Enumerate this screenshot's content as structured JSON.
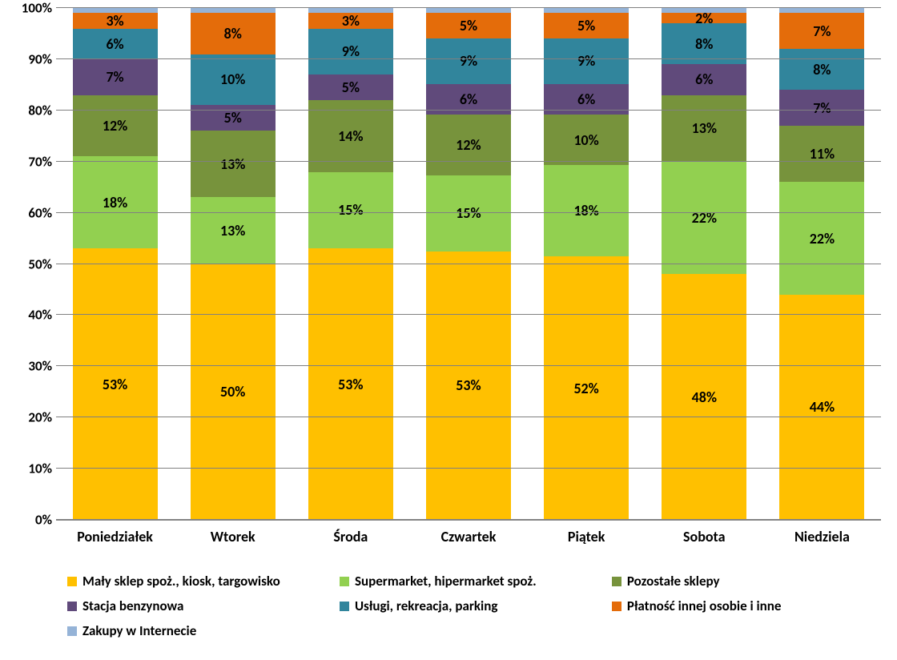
{
  "chart": {
    "type": "stacked-bar-100",
    "background_color": "#ffffff",
    "grid_color": "#808080",
    "label_fontsize": 17,
    "label_fontweight": "bold",
    "label_color": "#000000",
    "data_label_fontsize": 18,
    "bar_width_ratio": 0.72,
    "y_axis": {
      "min": 0,
      "max": 100,
      "tick_step": 10,
      "format": "percent",
      "ticks": [
        "0%",
        "10%",
        "20%",
        "30%",
        "40%",
        "50%",
        "60%",
        "70%",
        "80%",
        "90%",
        "100%"
      ]
    },
    "categories": [
      "Poniedziałek",
      "Wtorek",
      "Środa",
      "Czwartek",
      "Piątek",
      "Sobota",
      "Niedziela"
    ],
    "series": [
      {
        "name": "Mały sklep spoż., kiosk, targowisko",
        "color": "#ffc000",
        "values": [
          53,
          50,
          53,
          53,
          52,
          48,
          44
        ],
        "labels": [
          "53%",
          "50%",
          "53%",
          "53%",
          "52%",
          "48%",
          "44%"
        ],
        "show_label": [
          true,
          true,
          true,
          true,
          true,
          true,
          true
        ]
      },
      {
        "name": "Supermarket, hipermarket spoż.",
        "color": "#92d050",
        "values": [
          18,
          13,
          15,
          15,
          18,
          22,
          22
        ],
        "labels": [
          "18%",
          "13%",
          "15%",
          "15%",
          "18%",
          "22%",
          "22%"
        ],
        "show_label": [
          true,
          true,
          true,
          true,
          true,
          true,
          true
        ]
      },
      {
        "name": "Pozostałe sklepy",
        "color": "#77933c",
        "values": [
          12,
          13,
          14,
          12,
          10,
          13,
          11
        ],
        "labels": [
          "12%",
          "13%",
          "14%",
          "12%",
          "10%",
          "13%",
          "11%"
        ],
        "show_label": [
          true,
          true,
          true,
          true,
          true,
          true,
          true
        ]
      },
      {
        "name": "Stacja benzynowa",
        "color": "#604a7b",
        "values": [
          7,
          5,
          5,
          6,
          6,
          6,
          7
        ],
        "labels": [
          "7%",
          "5%",
          "5%",
          "6%",
          "6%",
          "6%",
          "7%"
        ],
        "show_label": [
          true,
          true,
          true,
          true,
          true,
          true,
          true
        ]
      },
      {
        "name": "Usługi, rekreacja, parking",
        "color": "#31859c",
        "values": [
          6,
          10,
          9,
          9,
          9,
          8,
          8
        ],
        "labels": [
          "6%",
          "10%",
          "9%",
          "9%",
          "9%",
          "8%",
          "8%"
        ],
        "show_label": [
          true,
          true,
          true,
          true,
          true,
          true,
          true
        ]
      },
      {
        "name": "Płatność innej osobie i inne",
        "color": "#e46c0a",
        "values": [
          3,
          8,
          3,
          5,
          5,
          2,
          7
        ],
        "labels": [
          "3%",
          "8%",
          "3%",
          "5%",
          "5%",
          "2%",
          "7%"
        ],
        "show_label": [
          true,
          true,
          true,
          true,
          true,
          true,
          true
        ]
      },
      {
        "name": "Zakupy w Internecie",
        "color": "#95b3d7",
        "values": [
          1,
          1,
          1,
          1,
          1,
          1,
          1
        ],
        "labels": [
          "",
          "",
          "",
          "",
          "",
          "",
          ""
        ],
        "show_label": [
          false,
          false,
          false,
          false,
          false,
          false,
          false
        ]
      }
    ]
  }
}
